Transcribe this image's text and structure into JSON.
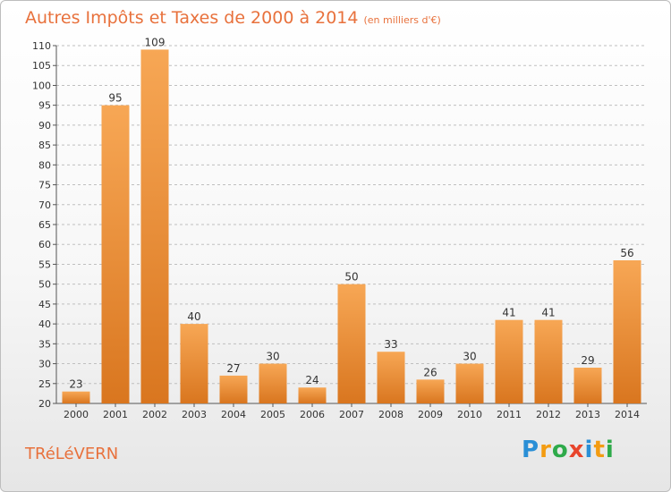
{
  "header": {
    "title": "Autres Impôts et Taxes de 2000 à 2014",
    "subtitle": "(en milliers d'€)"
  },
  "footer": {
    "commune": "TRéLéVERN",
    "logo_letters": [
      {
        "ch": "P",
        "color": "#2a8fd6"
      },
      {
        "ch": "r",
        "color": "#f39c12"
      },
      {
        "ch": "o",
        "color": "#2eaa4a"
      },
      {
        "ch": "x",
        "color": "#e8452c"
      },
      {
        "ch": "i",
        "color": "#2a8fd6"
      },
      {
        "ch": "t",
        "color": "#f39c12"
      },
      {
        "ch": "i",
        "color": "#2eaa4a"
      }
    ]
  },
  "colors": {
    "bar_light": "#f7a755",
    "bar_dark": "#d9761f",
    "title": "#e8713c",
    "grid": "#bfbfbf"
  },
  "chart_data": {
    "type": "bar",
    "title": "Autres Impôts et Taxes de 2000 à 2014",
    "subtitle": "(en milliers d'€)",
    "categories": [
      "2000",
      "2001",
      "2002",
      "2003",
      "2004",
      "2005",
      "2006",
      "2007",
      "2008",
      "2009",
      "2010",
      "2011",
      "2012",
      "2013",
      "2014"
    ],
    "values": [
      23,
      95,
      109,
      40,
      27,
      30,
      24,
      50,
      33,
      26,
      30,
      41,
      41,
      29,
      56
    ],
    "ylim": [
      20,
      110
    ],
    "ytick_step": 5,
    "grid": true,
    "xlabel": "",
    "ylabel": ""
  }
}
